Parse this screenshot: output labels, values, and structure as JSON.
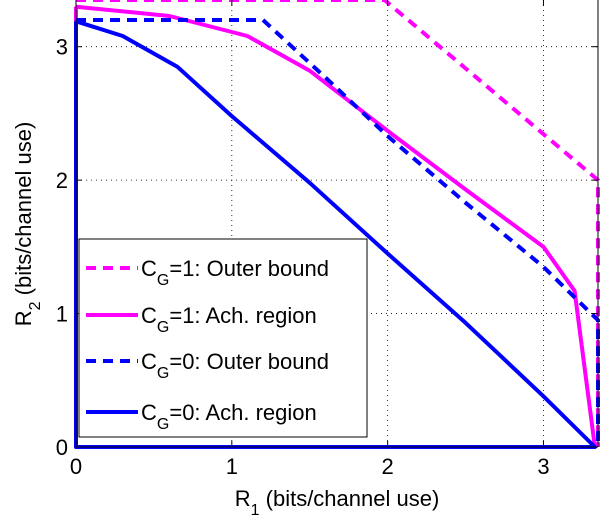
{
  "chart_data": {
    "type": "line",
    "title": "",
    "xlabel": {
      "main": "R",
      "sub": "1",
      "rest": "  (bits/channel use)"
    },
    "ylabel": {
      "main": "R",
      "sub": "2",
      "rest": "  (bits/channel use)"
    },
    "xlim": [
      0,
      3.35
    ],
    "ylim": [
      0,
      3.35
    ],
    "xticks": [
      0,
      1,
      2,
      3
    ],
    "yticks": [
      0,
      1,
      2,
      3
    ],
    "xtick_labels": [
      "0",
      "1",
      "2",
      "3"
    ],
    "ytick_labels": [
      "0",
      "1",
      "2",
      "3"
    ],
    "grid": true,
    "legend_position": "lower-left",
    "series": [
      {
        "name": {
          "main": "C",
          "sub": "G",
          "rest": "=1: Outer bound"
        },
        "color": "#ff00ff",
        "dash": "dashed",
        "points": [
          [
            0,
            3.35
          ],
          [
            1.98,
            3.35
          ],
          [
            3.35,
            2.0
          ],
          [
            3.35,
            0
          ]
        ]
      },
      {
        "name": {
          "main": "C",
          "sub": "G",
          "rest": "=1: Ach. region"
        },
        "color": "#ff00ff",
        "dash": "solid",
        "points": [
          [
            0,
            3.3
          ],
          [
            0.6,
            3.23
          ],
          [
            1.1,
            3.08
          ],
          [
            1.5,
            2.82
          ],
          [
            2.0,
            2.37
          ],
          [
            2.5,
            1.93
          ],
          [
            3.0,
            1.5
          ],
          [
            3.2,
            1.17
          ],
          [
            3.33,
            0
          ],
          [
            0,
            0
          ],
          [
            0,
            3.3
          ]
        ]
      },
      {
        "name": {
          "main": "C",
          "sub": "G",
          "rest": "=0: Outer bound"
        },
        "color": "#0000ff",
        "dash": "dashed",
        "points": [
          [
            0,
            3.2
          ],
          [
            1.2,
            3.2
          ],
          [
            1.6,
            2.77
          ],
          [
            2.0,
            2.33
          ],
          [
            2.5,
            1.83
          ],
          [
            3.0,
            1.35
          ],
          [
            3.35,
            0.95
          ],
          [
            3.35,
            0
          ]
        ]
      },
      {
        "name": {
          "main": "C",
          "sub": "G",
          "rest": "=0: Ach. region"
        },
        "color": "#0000ff",
        "dash": "solid",
        "points": [
          [
            0,
            3.19
          ],
          [
            0.3,
            3.08
          ],
          [
            0.65,
            2.85
          ],
          [
            1.0,
            2.48
          ],
          [
            1.5,
            1.98
          ],
          [
            2.0,
            1.45
          ],
          [
            2.5,
            0.93
          ],
          [
            3.0,
            0.38
          ],
          [
            3.33,
            0
          ],
          [
            0,
            0
          ],
          [
            0,
            3.19
          ]
        ]
      }
    ]
  }
}
